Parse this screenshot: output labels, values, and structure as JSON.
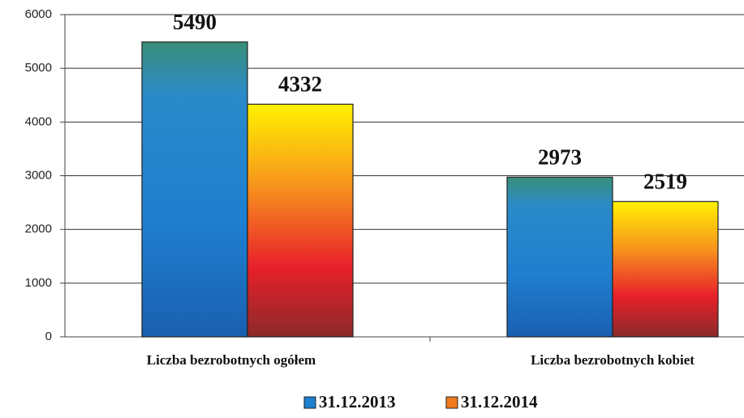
{
  "chart_data": {
    "type": "bar",
    "categories": [
      "Liczba bezrobotnych ogółem",
      "Liczba bezrobotnych kobiet"
    ],
    "series": [
      {
        "name": "31.12.2013",
        "color": "#1f7fd0",
        "values": [
          5490,
          2973
        ]
      },
      {
        "name": "31.12.2014",
        "color": "#f07a1a",
        "values": [
          4332,
          2519
        ]
      }
    ],
    "ylim": [
      0,
      6000
    ],
    "yticks": [
      0,
      1000,
      2000,
      3000,
      4000,
      5000,
      6000
    ],
    "grid": true
  }
}
